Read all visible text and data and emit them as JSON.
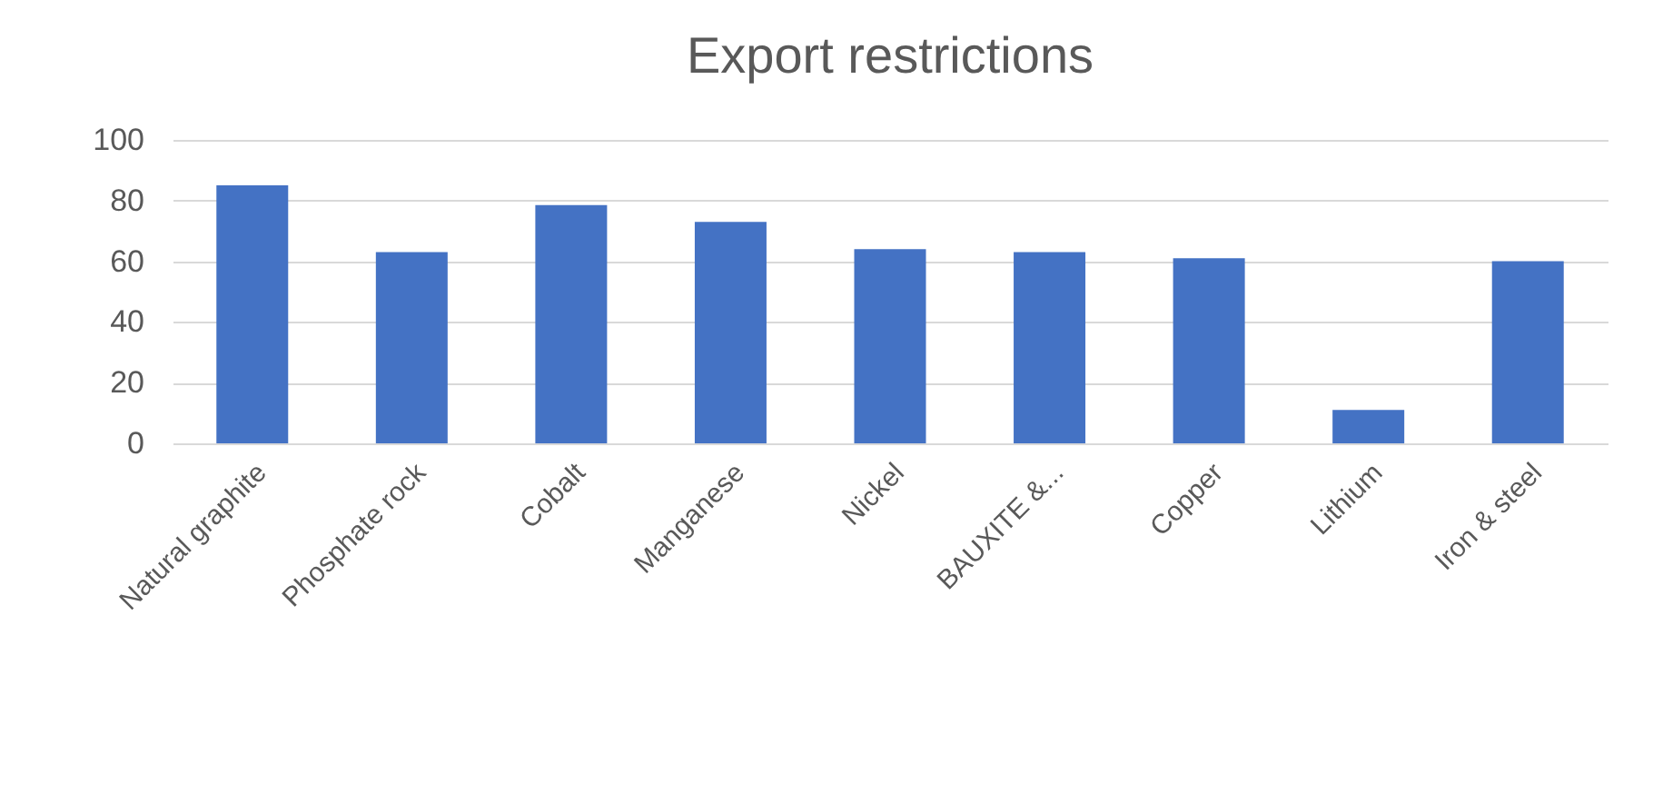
{
  "chart_data": {
    "type": "bar",
    "title": "Export restrictions",
    "categories": [
      "Natural graphite",
      "Phosphate rock",
      "Cobalt",
      "Manganese",
      "Nickel",
      "BAUXITE &...",
      "Copper",
      "Lithium",
      "Iron & steel"
    ],
    "values": [
      85,
      63,
      78.5,
      73,
      64,
      63,
      61,
      11,
      60
    ],
    "color": "#4472c4",
    "ylim": [
      0,
      100
    ],
    "yticks": [
      0,
      20,
      40,
      60,
      80,
      100
    ],
    "grid": "y"
  }
}
